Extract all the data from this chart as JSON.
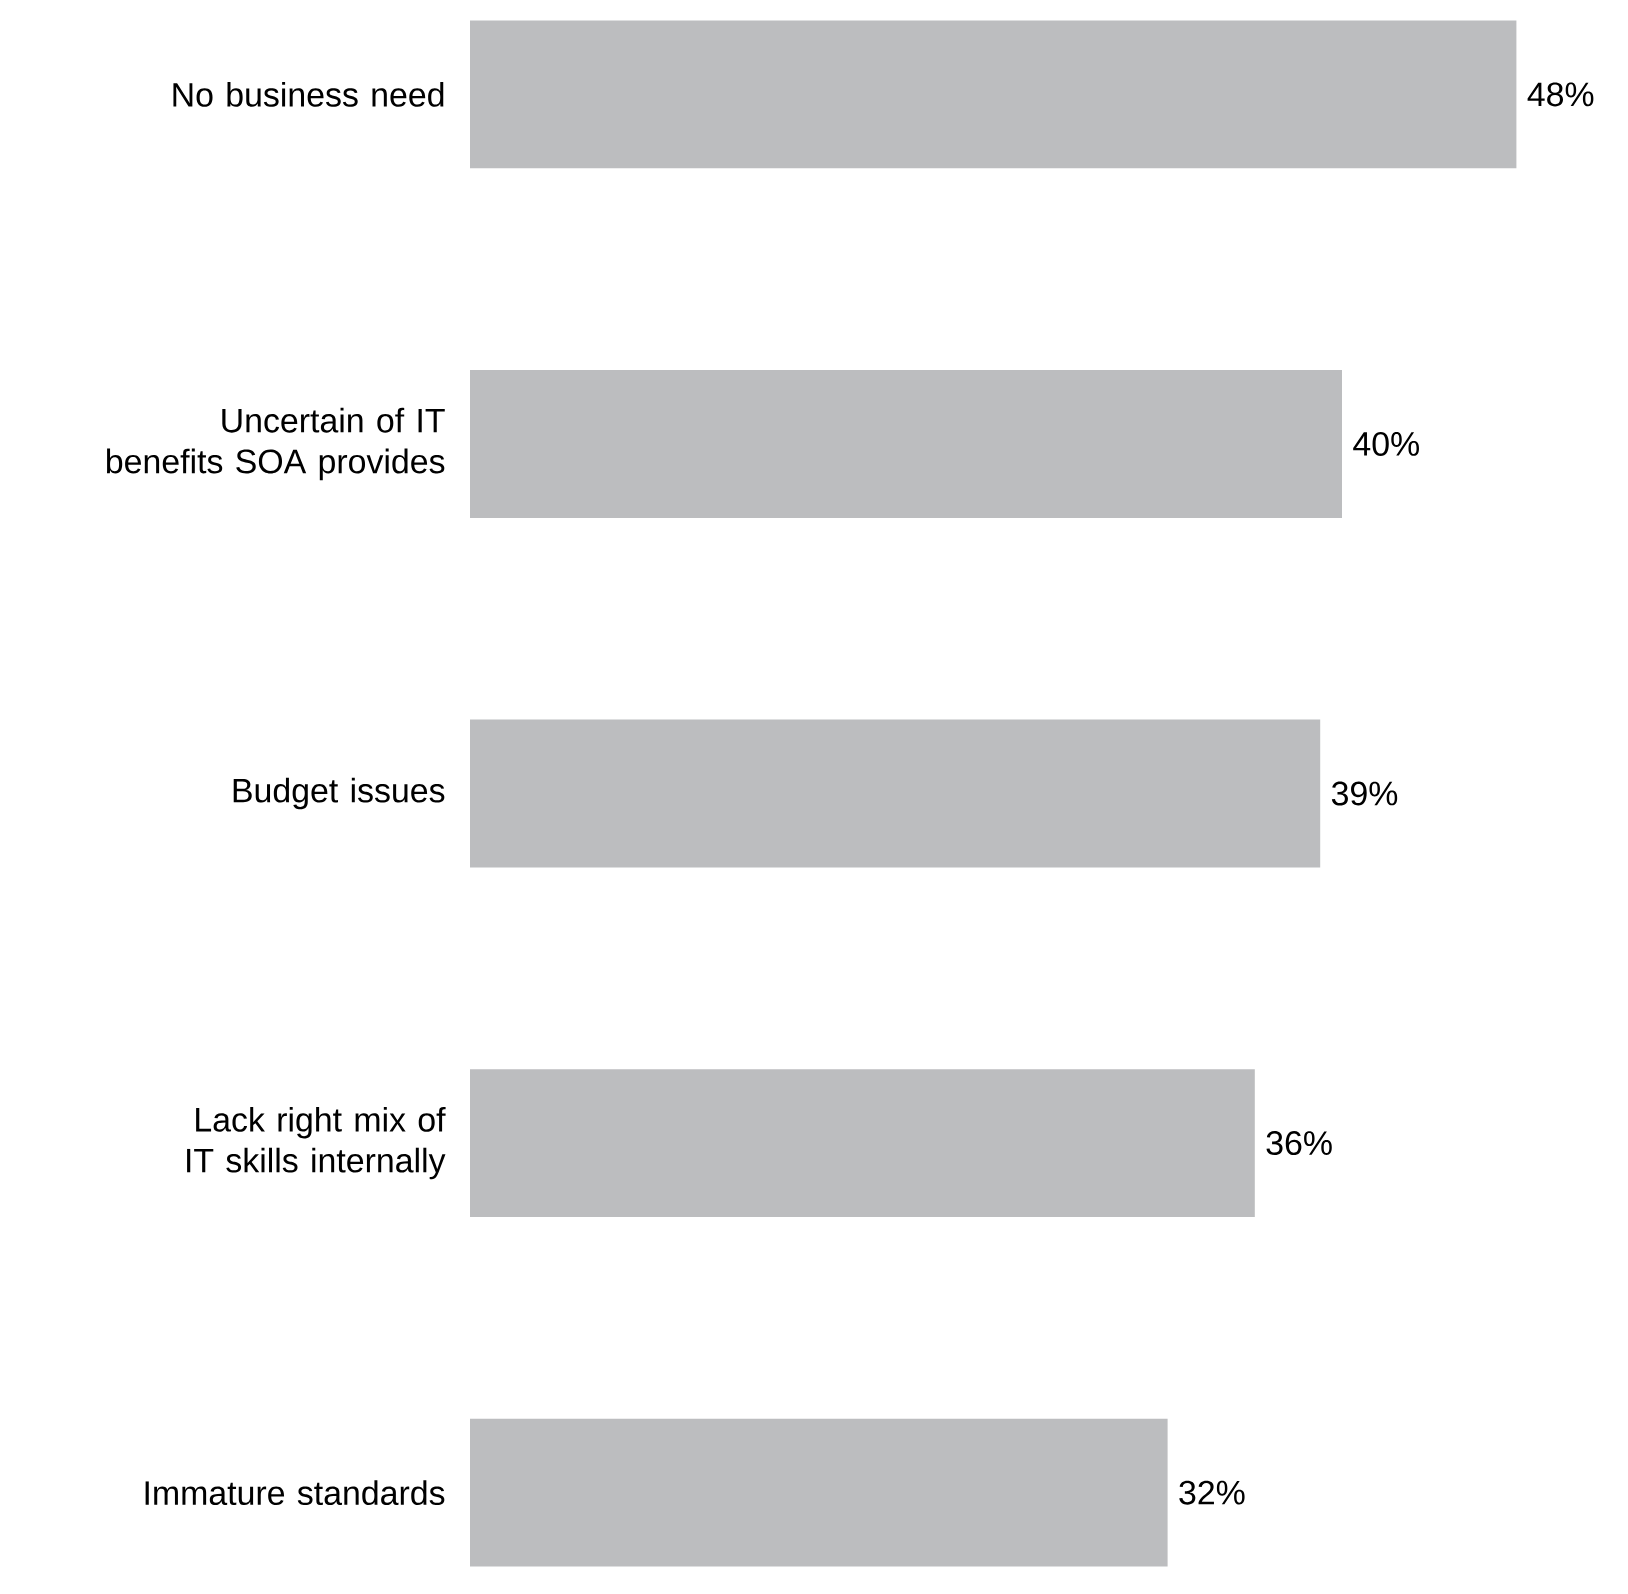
{
  "chart_data": {
    "type": "bar",
    "orientation": "horizontal",
    "categories": [
      "No business need",
      "Uncertain of IT benefits SOA provides",
      "Budget issues",
      "Lack right mix of IT skills internally",
      "Immature standards"
    ],
    "values": [
      48,
      40,
      39,
      36,
      32
    ],
    "value_labels": [
      "48%",
      "40%",
      "39%",
      "36%",
      "32%"
    ],
    "color": "#bcbdbf"
  }
}
